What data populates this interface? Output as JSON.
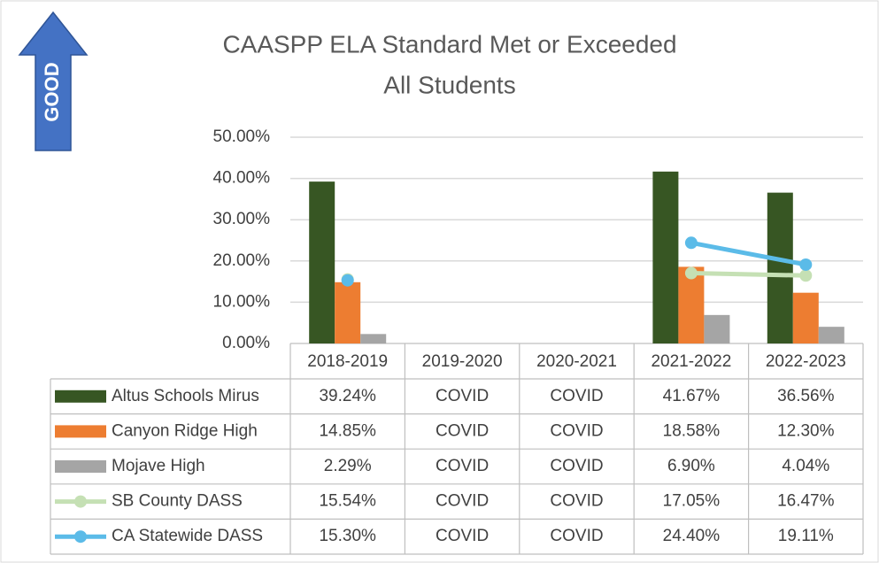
{
  "chart_data": {
    "type": "combo",
    "title": "CAASPP ELA Standard Met or Exceeded",
    "subtitle": "All Students",
    "annotation": "GOOD",
    "categories": [
      "2018-2019",
      "2019-2020",
      "2020-2021",
      "2021-2022",
      "2022-2023"
    ],
    "ylim": [
      0,
      50
    ],
    "yticks": [
      {
        "value": 0,
        "label": "0.00%"
      },
      {
        "value": 10,
        "label": "10.00%"
      },
      {
        "value": 20,
        "label": "20.00%"
      },
      {
        "value": 30,
        "label": "30.00%"
      },
      {
        "value": 40,
        "label": "40.00%"
      },
      {
        "value": 50,
        "label": "50.00%"
      }
    ],
    "grid": true,
    "series": [
      {
        "name": "Altus Schools Mirus",
        "type": "bar",
        "color": "#375623",
        "values": [
          39.24,
          null,
          null,
          41.67,
          36.56
        ],
        "value_labels": [
          "39.24%",
          "COVID",
          "COVID",
          "41.67%",
          "36.56%"
        ]
      },
      {
        "name": "Canyon Ridge High",
        "type": "bar",
        "color": "#ed7d31",
        "values": [
          14.85,
          null,
          null,
          18.58,
          12.3
        ],
        "value_labels": [
          "14.85%",
          "COVID",
          "COVID",
          "18.58%",
          "12.30%"
        ]
      },
      {
        "name": "Mojave High",
        "type": "bar",
        "color": "#a5a5a5",
        "values": [
          2.29,
          null,
          null,
          6.9,
          4.04
        ],
        "value_labels": [
          "2.29%",
          "COVID",
          "COVID",
          "6.90%",
          "4.04%"
        ]
      },
      {
        "name": "SB  County DASS",
        "type": "line",
        "color": "#c5e0b4",
        "values": [
          15.54,
          null,
          null,
          17.05,
          16.47
        ],
        "value_labels": [
          "15.54%",
          "COVID",
          "COVID",
          "17.05%",
          "16.47%"
        ]
      },
      {
        "name": "CA Statewide DASS",
        "type": "line",
        "color": "#5bbbe8",
        "values": [
          15.3,
          null,
          null,
          24.4,
          19.11
        ],
        "value_labels": [
          "15.30%",
          "COVID",
          "COVID",
          "24.40%",
          "19.11%"
        ]
      }
    ]
  }
}
